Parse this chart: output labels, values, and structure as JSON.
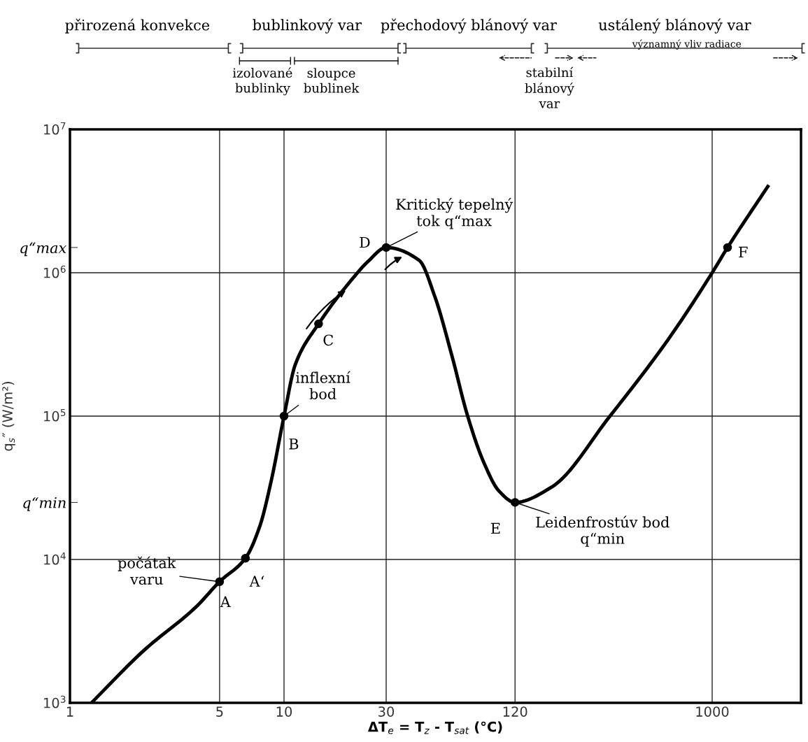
{
  "chart_data": {
    "type": "line",
    "xlabel": "ΔT$_{e}$ = T$_{z}$ - T$_{sat}$ (°C)",
    "ylabel": "q$_{s}$″ (W/m²)",
    "log": "xy",
    "xlim": [
      1,
      2600
    ],
    "ylim": [
      1000,
      10000000
    ],
    "xticks": [
      1,
      5,
      10,
      30,
      120,
      1000
    ],
    "yticks": [
      {
        "value": 1000,
        "label": "10$^{3}$"
      },
      {
        "value": 10000,
        "label": "10$^{4}$"
      },
      {
        "value": 25000,
        "label": "q“min"
      },
      {
        "value": 100000,
        "label": "10$^{5}$"
      },
      {
        "value": 1500000,
        "label": "q“max"
      },
      {
        "value": 1000000,
        "label": "10$^{6}$"
      },
      {
        "value": 10000000,
        "label": "10$^{7}$"
      }
    ],
    "grid": true,
    "line_style": "solid",
    "series": [
      {
        "color": "#000000",
        "x": [
          1.26,
          2.2,
          3.9,
          5,
          6.6,
          7.7,
          8.7,
          10,
          11.3,
          14.5,
          20.9,
          24.7,
          30,
          42.8,
          50.5,
          61,
          71.8,
          86,
          101,
          120,
          178,
          333,
          621,
          1000,
          1180,
          1820
        ],
        "values": [
          1000,
          2300,
          4700,
          7000,
          10200,
          17000,
          35000,
          100000,
          230000,
          440000,
          910000,
          1200000,
          1500000,
          1220000,
          690000,
          260000,
          102000,
          47000,
          30000,
          25000,
          32000,
          100000,
          340000,
          1000000,
          1500000,
          4000000
        ]
      },
      {
        "type": "scatter",
        "marker": "circle",
        "color": "#000000",
        "x": [
          5,
          6.6,
          10,
          14.5,
          30,
          120,
          1180
        ],
        "values": [
          7000,
          10200,
          100000,
          440000,
          1500000,
          25000,
          1500000
        ]
      }
    ],
    "annotations": [
      {
        "text": "A",
        "x": 5,
        "y": 7000
      },
      {
        "text": "A‘",
        "x": 6.6,
        "y": 10200
      },
      {
        "text": "B",
        "x": 10,
        "y": 100000
      },
      {
        "text": "C",
        "x": 14.5,
        "y": 440000
      },
      {
        "text": "D",
        "x": 30,
        "y": 1500000
      },
      {
        "text": "E",
        "x": 120,
        "y": 25000
      },
      {
        "text": "F",
        "x": 1180,
        "y": 1500000
      },
      {
        "text": "počátak\nvaru",
        "x": 5,
        "y": 7000
      },
      {
        "text": "inflexní\nbod",
        "x": 10,
        "y": 100000
      },
      {
        "text": "Kritický tepelný\ntok q“max",
        "x": 30,
        "y": 1500000
      },
      {
        "text": "Leidenfrostúv bod\nq“min",
        "x": 120,
        "y": 25000
      },
      "přirozená konvekce",
      "bublinkový var",
      "přechodový blánový var",
      "ustálený blánový var",
      "izolované\nbublinky",
      "sloupce\nbublinek",
      "stabilní\nblánový\nvar",
      "významný vliv radiace"
    ]
  }
}
